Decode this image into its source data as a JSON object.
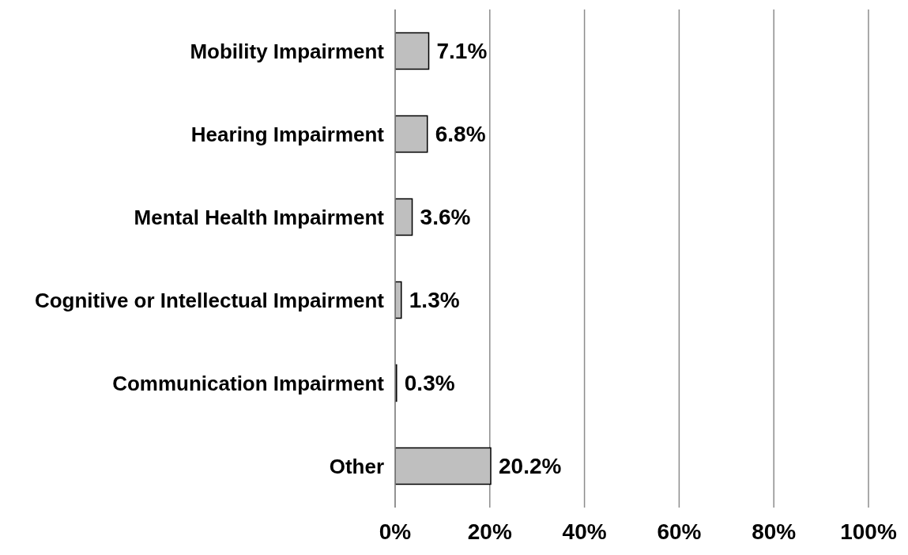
{
  "chart_data": {
    "type": "bar",
    "orientation": "horizontal",
    "categories": [
      "Mobility Impairment",
      "Hearing Impairment",
      "Mental Health Impairment",
      "Cognitive or Intellectual Impairment",
      "Communication Impairment",
      "Other"
    ],
    "values": [
      7.1,
      6.8,
      3.6,
      1.3,
      0.3,
      20.2
    ],
    "value_labels": [
      "7.1%",
      "6.8%",
      "3.6%",
      "1.3%",
      "0.3%",
      "20.2%"
    ],
    "color": "#bfbfbf",
    "xlim": [
      0,
      100
    ],
    "xticks": [
      {
        "value": 0,
        "label": "0%"
      },
      {
        "value": 20,
        "label": "20%"
      },
      {
        "value": 40,
        "label": "40%"
      },
      {
        "value": 60,
        "label": "60%"
      },
      {
        "value": 80,
        "label": "80%"
      },
      {
        "value": 100,
        "label": "100%"
      }
    ],
    "grid": "x"
  }
}
